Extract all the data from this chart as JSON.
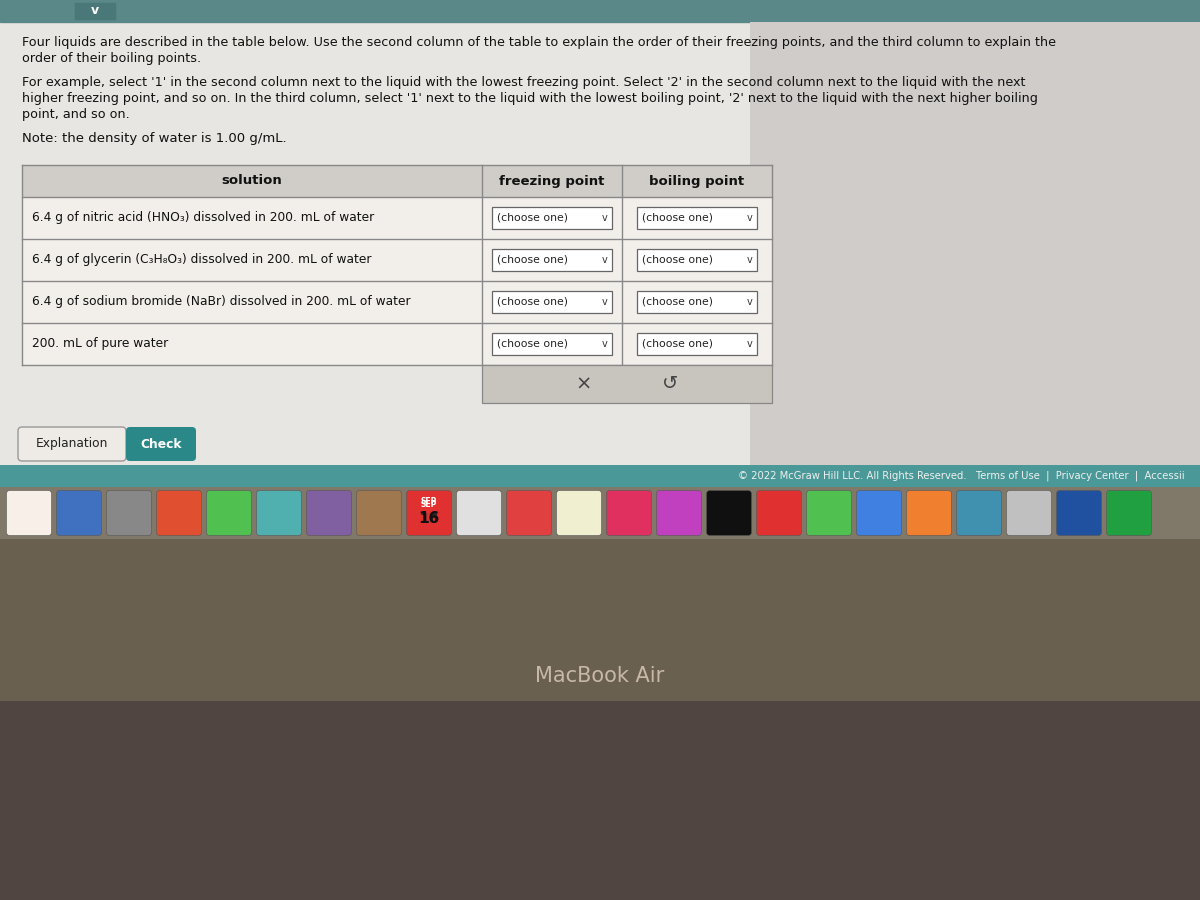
{
  "bg_color_top": "#b8c8c8",
  "bg_color_main": "#d8d4d0",
  "page_bg": "#e8e6e2",
  "header_text_1": "Four liquids are described in the table below. Use the second column of the table to explain the order of their freezing points, and the third column to explain the",
  "header_text_2": "order of their boiling points.",
  "body_text_1": "For example, select '1' in the second column next to the liquid with the lowest freezing point. Select '2' in the second column next to the liquid with the next",
  "body_text_2": "higher freezing point, and so on. In the third column, select '1' next to the liquid with the lowest boiling point, '2' next to the liquid with the next higher boiling",
  "body_text_3": "point, and so on.",
  "note_text": "Note: the density of water is 1.00 g/mL.",
  "col_headers": [
    "solution",
    "freezing point",
    "boiling point"
  ],
  "rows": [
    "6.4 g of nitric acid (HNO₃) dissolved in 200. mL of water",
    "6.4 g of glycerin (C₃H₈O₃) dissolved in 200. mL of water",
    "6.4 g of sodium bromide (NaBr) dissolved in 200. mL of water",
    "200. mL of pure water"
  ],
  "dropdown_label": "(choose one)",
  "dropdown_bg": "#ffffff",
  "dropdown_border": "#666666",
  "table_border": "#888888",
  "header_row_bg": "#d0ccc8",
  "row_bg": "#f2efeb",
  "explanation_btn_color": "#eeebe7",
  "explanation_btn_border": "#999999",
  "check_btn_color": "#2a8888",
  "check_btn_text": "#ffffff",
  "footer_bg": "#4a9898",
  "footer_text": "© 2022 McGraw Hill LLC. All Rights Reserved.   Terms of Use  |  Privacy Center  |  Accessii",
  "xmark_color": "#444444",
  "undo_color": "#444444",
  "action_area_bg": "#c8c4be",
  "macbook_text": "MacBook Air",
  "bottom_section_bg": "#6a6050",
  "laptop_body_bg": "#504540",
  "laptop_stand_bg": "#403530",
  "dock_bg": "#807868",
  "chevron_bg": "#5a8888",
  "chevron_text": "v",
  "screen_right_bg": "#c8c8cc"
}
